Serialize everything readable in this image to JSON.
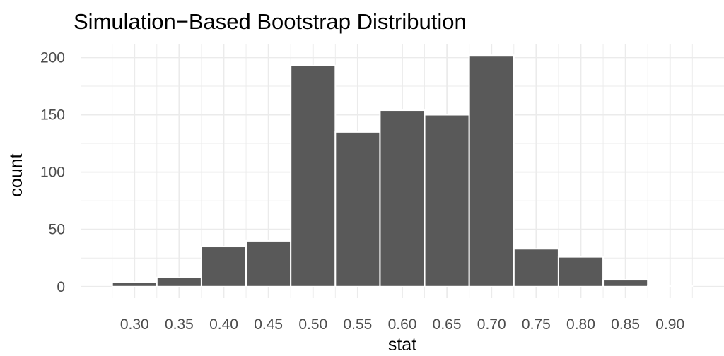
{
  "chart_data": {
    "type": "bar",
    "title": "Simulation−Based Bootstrap Distribution",
    "xlabel": "stat",
    "ylabel": "count",
    "bin_width": 0.05,
    "bin_centers": [
      0.3,
      0.35,
      0.4,
      0.45,
      0.5,
      0.55,
      0.6,
      0.65,
      0.7,
      0.75,
      0.8,
      0.85,
      0.9
    ],
    "values": [
      4,
      8,
      35,
      40,
      193,
      135,
      154,
      150,
      202,
      33,
      26,
      6,
      1
    ],
    "x_ticks": [
      "0.30",
      "0.35",
      "0.40",
      "0.45",
      "0.50",
      "0.55",
      "0.60",
      "0.65",
      "0.70",
      "0.75",
      "0.80",
      "0.85",
      "0.90"
    ],
    "y_ticks": [
      "0",
      "50",
      "100",
      "150",
      "200"
    ],
    "xlim": [
      0.2396,
      0.9604
    ],
    "ylim": [
      -10,
      212
    ],
    "grid": true,
    "legend": "none",
    "bar_color": "#595959",
    "bar_outline_color": "#ffffff",
    "grid_color": "#ebebeb",
    "tick_label_color": "#4d4d4d"
  }
}
